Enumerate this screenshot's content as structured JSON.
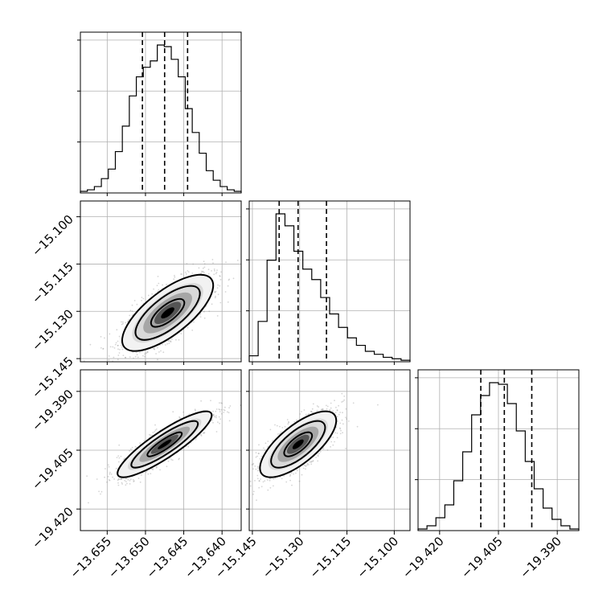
{
  "chart_data": {
    "type": "corner",
    "grid": true,
    "parameters": [
      {
        "range": [
          -13.6585,
          -13.6375
        ],
        "ticks": [
          -13.655,
          -13.65,
          -13.645,
          -13.64
        ],
        "tick_labels": [
          "−13.655",
          "−13.650",
          "−13.645",
          "−13.640"
        ],
        "quantiles": [
          -13.6504,
          -13.6475,
          -13.6445
        ],
        "histogram": [
          0.01,
          0.02,
          0.04,
          0.09,
          0.15,
          0.26,
          0.42,
          0.61,
          0.73,
          0.79,
          0.83,
          0.93,
          0.92,
          0.84,
          0.73,
          0.53,
          0.38,
          0.25,
          0.14,
          0.08,
          0.04,
          0.02,
          0.01
        ]
      },
      {
        "range": [
          -15.146,
          -15.095
        ],
        "ticks": [
          -15.145,
          -15.13,
          -15.115,
          -15.1
        ],
        "tick_labels": [
          "−15.145",
          "−15.130",
          "−15.115",
          "−15.100"
        ],
        "quantiles": [
          -15.1365,
          -15.1305,
          -15.1215
        ],
        "histogram": [
          0.04,
          0.27,
          0.68,
          0.99,
          0.91,
          0.74,
          0.62,
          0.55,
          0.43,
          0.32,
          0.23,
          0.16,
          0.11,
          0.07,
          0.05,
          0.03,
          0.02,
          0.01
        ]
      },
      {
        "range": [
          -19.4255,
          -19.3845
        ],
        "ticks": [
          -19.42,
          -19.405,
          -19.39
        ],
        "tick_labels": [
          "−19.420",
          "−19.405",
          "−19.390"
        ],
        "quantiles": [
          -19.4095,
          -19.4035,
          -19.3965
        ],
        "histogram": [
          0.01,
          0.03,
          0.08,
          0.16,
          0.31,
          0.49,
          0.72,
          0.84,
          0.92,
          0.91,
          0.79,
          0.62,
          0.43,
          0.26,
          0.14,
          0.07,
          0.03,
          0.01
        ]
      }
    ],
    "pairs": [
      {
        "x_param": 0,
        "y_param": 1,
        "mean": [
          -13.6471,
          -15.1305
        ],
        "sigma": [
          0.0029,
          0.0059
        ],
        "rho": 0.72
      },
      {
        "x_param": 0,
        "y_param": 2,
        "mean": [
          -13.6475,
          -19.4035
        ],
        "sigma": [
          0.003,
          0.0041
        ],
        "rho": 0.88
      },
      {
        "x_param": 1,
        "y_param": 2,
        "mean": [
          -15.1305,
          -19.4035
        ],
        "sigma": [
          0.0059,
          0.0041
        ],
        "rho": 0.72
      }
    ]
  }
}
